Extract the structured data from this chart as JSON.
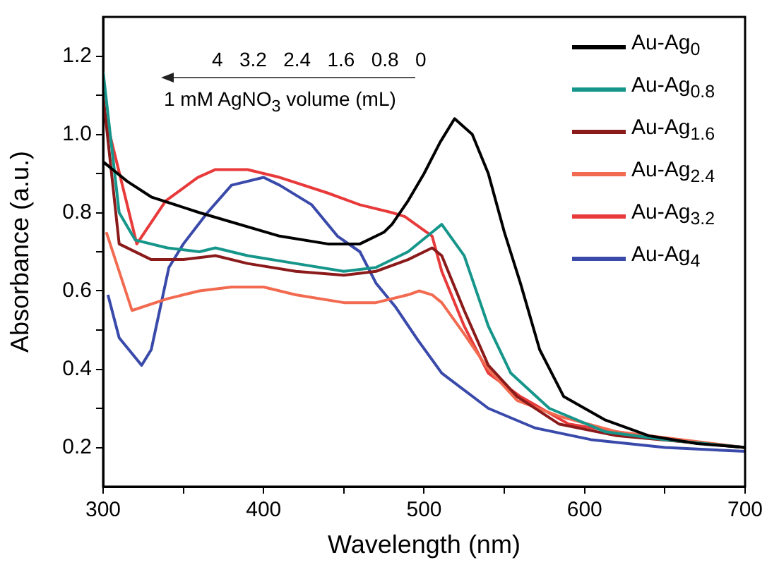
{
  "chart_data": {
    "type": "line",
    "xlabel": "Wavelength (nm)",
    "ylabel": "Absorbance (a.u.)",
    "xlim": [
      300,
      700
    ],
    "xticks": [
      300,
      {
        "value": 350,
        "label": null
      },
      400,
      {
        "value": 450,
        "label": null
      },
      500,
      {
        "value": 550,
        "label": null
      },
      600,
      {
        "value": 650,
        "label": null
      },
      700
    ],
    "ylim": [
      0.1,
      1.3
    ],
    "yticks": [
      0.2,
      {
        "value": 0.3,
        "label": null
      },
      0.4,
      {
        "value": 0.5,
        "label": null
      },
      0.6,
      {
        "value": 0.7,
        "label": null
      },
      0.8,
      {
        "value": 0.9,
        "label": null
      },
      {
        "value": 1,
        "label": "1.0"
      },
      {
        "value": 1.1,
        "label": null
      },
      1.2
    ],
    "grid": false,
    "legend": "top right",
    "marker": "none",
    "line_style": "solid",
    "annotations": [
      "4   3.2   2.4   1.6   0.8   0",
      "1 mM AgNO$_{3}$ volume (mL)"
    ],
    "series": [
      {
        "name": "Au-Ag$_{0}$",
        "color": "#000000",
        "x": [
          300,
          315,
          330,
          360,
          410,
          440,
          460,
          475,
          480,
          490,
          500,
          510,
          519,
          530,
          540,
          550,
          560,
          572,
          587,
          613,
          640,
          670,
          700
        ],
        "values": [
          0.93,
          0.88,
          0.84,
          0.8,
          0.74,
          0.72,
          0.72,
          0.75,
          0.77,
          0.83,
          0.9,
          0.98,
          1.04,
          1.0,
          0.9,
          0.75,
          0.62,
          0.45,
          0.33,
          0.27,
          0.23,
          0.21,
          0.2
        ]
      },
      {
        "name": "Au-Ag$_{0.8}$",
        "color": "#16968a",
        "x": [
          300,
          310,
          320,
          340,
          360,
          370,
          390,
          420,
          450,
          470,
          490,
          505,
          511,
          525,
          540,
          554,
          578,
          613,
          650,
          700
        ],
        "values": [
          1.16,
          0.8,
          0.73,
          0.71,
          0.7,
          0.71,
          0.69,
          0.67,
          0.65,
          0.66,
          0.7,
          0.75,
          0.77,
          0.69,
          0.51,
          0.39,
          0.3,
          0.24,
          0.22,
          0.2
        ]
      },
      {
        "name": "Au-Ag$_{1.6}$",
        "color": "#8b1a1a",
        "x": [
          300,
          310,
          330,
          350,
          370,
          390,
          420,
          450,
          470,
          490,
          505,
          511,
          525,
          540,
          558,
          584,
          620,
          700
        ],
        "values": [
          1.1,
          0.72,
          0.68,
          0.68,
          0.69,
          0.67,
          0.65,
          0.64,
          0.65,
          0.68,
          0.71,
          0.69,
          0.55,
          0.41,
          0.33,
          0.26,
          0.23,
          0.2
        ]
      },
      {
        "name": "Au-Ag$_{2.4}$",
        "color": "#f26a50",
        "x": [
          302,
          318,
          340,
          360,
          380,
          400,
          420,
          450,
          470,
          490,
          497,
          505,
          511,
          525,
          540,
          558,
          584,
          620,
          700
        ],
        "values": [
          0.75,
          0.55,
          0.58,
          0.6,
          0.61,
          0.61,
          0.59,
          0.57,
          0.57,
          0.59,
          0.6,
          0.59,
          0.57,
          0.49,
          0.4,
          0.32,
          0.28,
          0.24,
          0.2
        ]
      },
      {
        "name": "Au-Ag$_{3.2}$",
        "color": "#e83a3a",
        "x": [
          300,
          321,
          339,
          359,
          370,
          390,
          410,
          440,
          460,
          480,
          488,
          505,
          511,
          525,
          540,
          560,
          590,
          650,
          700
        ],
        "values": [
          1.07,
          0.72,
          0.83,
          0.89,
          0.91,
          0.91,
          0.89,
          0.85,
          0.82,
          0.8,
          0.79,
          0.74,
          0.65,
          0.51,
          0.39,
          0.33,
          0.26,
          0.22,
          0.2
        ]
      },
      {
        "name": "Au-Ag$_{4}$",
        "color": "#3a4aaa",
        "x": [
          303,
          310,
          324,
          330,
          341,
          350,
          365,
          380,
          400,
          410,
          430,
          446,
          460,
          470,
          482,
          496,
          511,
          540,
          569,
          604,
          650,
          700
        ],
        "values": [
          0.59,
          0.48,
          0.41,
          0.45,
          0.66,
          0.72,
          0.8,
          0.87,
          0.89,
          0.87,
          0.82,
          0.74,
          0.7,
          0.62,
          0.56,
          0.475,
          0.39,
          0.3,
          0.25,
          0.22,
          0.2,
          0.19
        ]
      }
    ]
  }
}
